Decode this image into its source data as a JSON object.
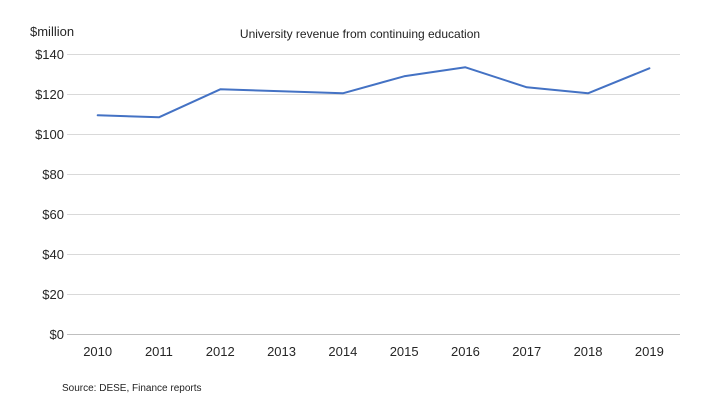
{
  "chart": {
    "colors": {
      "line": "#4472C4",
      "grid": "#D9D9D9",
      "axis": "#BFBFBF",
      "text": "#262626"
    }
  },
  "chart_data": {
    "type": "line",
    "title": "University revenue from continuing education",
    "ylabel": "$million",
    "xlabel": "",
    "source": "Source: DESE, Finance reports",
    "categories": [
      "2010",
      "2011",
      "2012",
      "2013",
      "2014",
      "2015",
      "2016",
      "2017",
      "2018",
      "2019"
    ],
    "series": [
      {
        "name": "University revenue from continuing education",
        "values": [
          109.5,
          108.5,
          122.5,
          121.5,
          120.5,
          129,
          133.5,
          123.5,
          120.5,
          133
        ]
      }
    ],
    "ylim": [
      0,
      140
    ],
    "ytick_step": 20,
    "ytick_labels": [
      "$0",
      "$20",
      "$40",
      "$60",
      "$80",
      "$100",
      "$120",
      "$140"
    ],
    "grid": true,
    "legend": false
  }
}
